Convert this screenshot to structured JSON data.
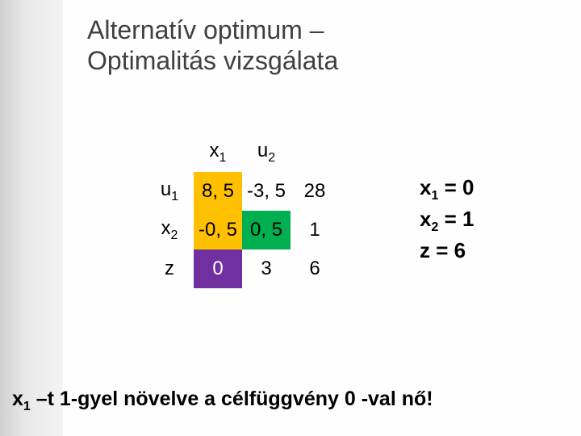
{
  "title_line1": "Alternatív optimum –",
  "title_line2": "Optimalitás vizsgálata",
  "table": {
    "col_headers": [
      {
        "var": "x",
        "sub": "1"
      },
      {
        "var": "u",
        "sub": "2"
      }
    ],
    "rows": [
      {
        "label_var": "u",
        "label_sub": "1",
        "cells": [
          "8, 5",
          "-3, 5",
          "28"
        ],
        "highlights": [
          "#ffc000",
          null,
          null
        ]
      },
      {
        "label_var": "x",
        "label_sub": "2",
        "cells": [
          "-0, 5",
          "0, 5",
          "1"
        ],
        "highlights": [
          "#ffc000",
          "#00b050",
          null
        ]
      },
      {
        "label_var": "z",
        "label_sub": "",
        "cells": [
          "0",
          "3",
          "6"
        ],
        "highlights": [
          "#7030a0",
          null,
          null
        ]
      }
    ]
  },
  "colors": {
    "orange": "#ffc000",
    "green": "#00b050",
    "purple": "#7030a0"
  },
  "solution": {
    "line1_var": "x",
    "line1_sub": "1",
    "line1_val": " = 0",
    "line2_var": "x",
    "line2_sub": "2",
    "line2_val": " = 1",
    "line3": "z = 6"
  },
  "bottom": {
    "pre_var": "x",
    "pre_sub": "1",
    "text": " –t  1-gyel növelve a célfüggvény 0 -val nő!"
  }
}
